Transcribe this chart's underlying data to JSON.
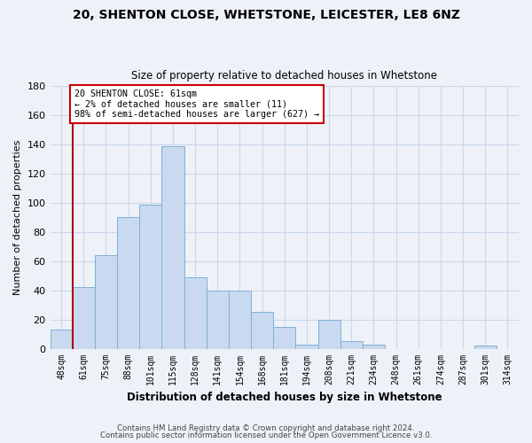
{
  "title1": "20, SHENTON CLOSE, WHETSTONE, LEICESTER, LE8 6NZ",
  "title2": "Size of property relative to detached houses in Whetstone",
  "xlabel": "Distribution of detached houses by size in Whetstone",
  "ylabel": "Number of detached properties",
  "bin_labels": [
    "48sqm",
    "61sqm",
    "75sqm",
    "88sqm",
    "101sqm",
    "115sqm",
    "128sqm",
    "141sqm",
    "154sqm",
    "168sqm",
    "181sqm",
    "194sqm",
    "208sqm",
    "221sqm",
    "234sqm",
    "248sqm",
    "261sqm",
    "274sqm",
    "287sqm",
    "301sqm",
    "314sqm"
  ],
  "bar_values": [
    13,
    42,
    64,
    90,
    99,
    139,
    49,
    40,
    40,
    25,
    15,
    3,
    20,
    5,
    3,
    0,
    0,
    0,
    0,
    2,
    0
  ],
  "bar_color": "#c9daf0",
  "bar_edge_color": "#7fafd6",
  "vline_x_index": 1,
  "vline_color": "#aa0000",
  "annotation_line1": "20 SHENTON CLOSE: 61sqm",
  "annotation_line2": "← 2% of detached houses are smaller (11)",
  "annotation_line3": "98% of semi-detached houses are larger (627) →",
  "annotation_box_color": "#ffffff",
  "annotation_box_edge_color": "#cc0000",
  "ylim": [
    0,
    180
  ],
  "yticks": [
    0,
    20,
    40,
    60,
    80,
    100,
    120,
    140,
    160,
    180
  ],
  "footer1": "Contains HM Land Registry data © Crown copyright and database right 2024.",
  "footer2": "Contains public sector information licensed under the Open Government Licence v3.0.",
  "bg_color": "#eef2f8",
  "grid_color": "#c8d8ec"
}
